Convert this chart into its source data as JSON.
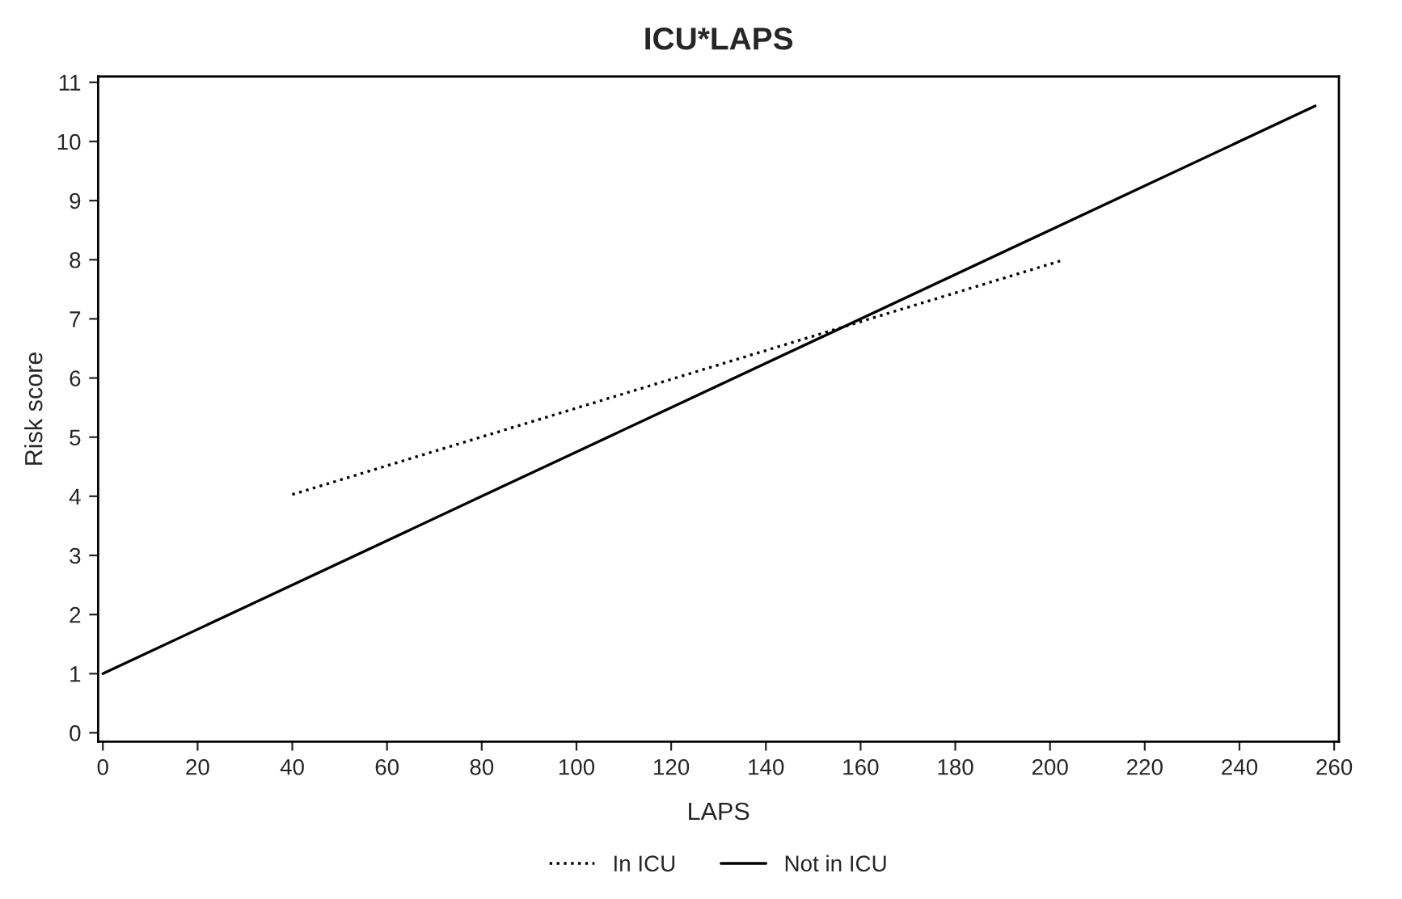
{
  "chart_data": {
    "type": "line",
    "title": "ICU*LAPS",
    "xlabel": "LAPS",
    "ylabel": "Risk score",
    "series": [
      {
        "name": "In ICU",
        "color": "#000000",
        "line_style": "dotted",
        "x": [
          40,
          79,
          203
        ],
        "values": [
          4.03,
          4.98,
          8.0
        ]
      },
      {
        "name": "Not in ICU",
        "color": "#000000",
        "line_style": "solid",
        "x": [
          0,
          80,
          100,
          256
        ],
        "values": [
          1.0,
          4.0,
          4.75,
          10.6
        ]
      }
    ],
    "xlim": [
      -1,
      261
    ],
    "ylim": [
      -0.15,
      11.1
    ],
    "xticks": [
      0,
      20,
      40,
      60,
      80,
      100,
      120,
      140,
      160,
      180,
      200,
      220,
      240,
      260
    ],
    "yticks": [
      0,
      1,
      2,
      3,
      4,
      5,
      6,
      7,
      8,
      9,
      10,
      11
    ],
    "grid": false,
    "legend": "bottom",
    "marker": "none"
  }
}
